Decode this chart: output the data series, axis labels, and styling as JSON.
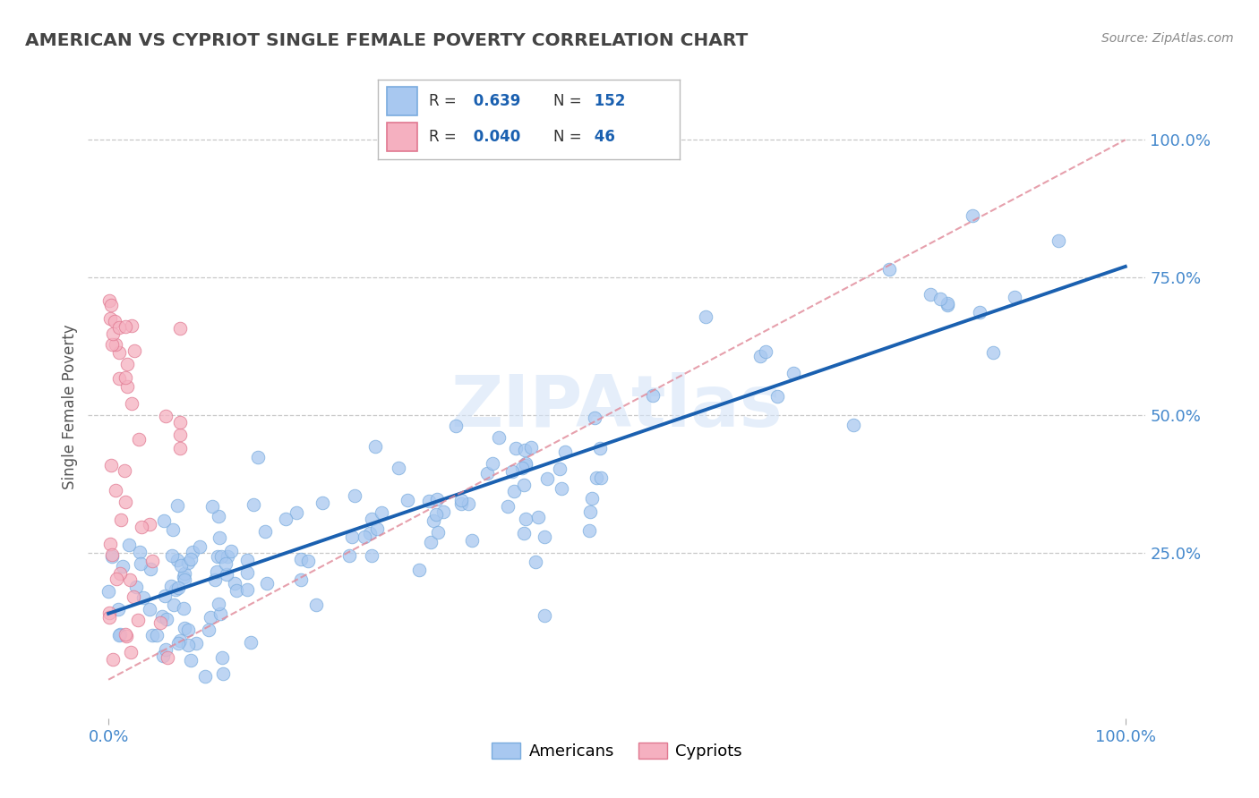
{
  "title": "AMERICAN VS CYPRIOT SINGLE FEMALE POVERTY CORRELATION CHART",
  "source": "Source: ZipAtlas.com",
  "ylabel": "Single Female Poverty",
  "x_tick_labels_left": "0.0%",
  "x_tick_labels_right": "100.0%",
  "y_tick_labels_right": [
    "25.0%",
    "50.0%",
    "75.0%",
    "100.0%"
  ],
  "y_tick_vals_right": [
    0.25,
    0.5,
    0.75,
    1.0
  ],
  "blue_R": 0.639,
  "blue_N": 152,
  "pink_R": 0.04,
  "pink_N": 46,
  "blue_color": "#a8c8f0",
  "blue_edge": "#7aacde",
  "pink_color": "#f5b0c0",
  "pink_edge": "#e07890",
  "blue_line_color": "#1a60b0",
  "pink_dashed_color": "#e08898",
  "watermark": "ZIPAtlas",
  "background_color": "#ffffff",
  "grid_color": "#c8c8c8",
  "title_color": "#444444",
  "axis_color": "#4488cc",
  "legend_value_color": "#1a60b0"
}
